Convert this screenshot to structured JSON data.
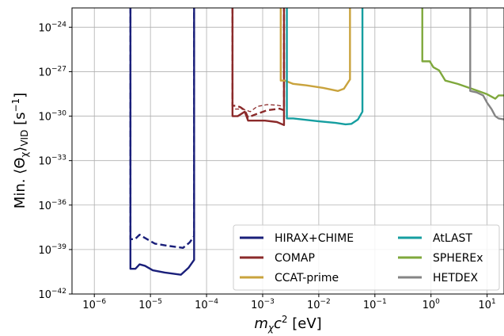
{
  "chart_data": {
    "type": "line",
    "title": "",
    "xlabel": "m_χ c² [eV]",
    "ylabel": "Min. ⟨Θ_χ⟩_VID [s⁻¹]",
    "xscale": "log",
    "yscale": "log",
    "xlim": [
      4e-07,
      20
    ],
    "ylim": [
      1e-42,
      2e-23
    ],
    "grid": true,
    "legend": {
      "placement": "lower-right",
      "columns": 2
    },
    "x_ticks": [
      {
        "value": 1e-06,
        "base": "10",
        "exp": "−6"
      },
      {
        "value": 1e-05,
        "base": "10",
        "exp": "−5"
      },
      {
        "value": 0.0001,
        "base": "10",
        "exp": "−4"
      },
      {
        "value": 0.001,
        "base": "10",
        "exp": "−3"
      },
      {
        "value": 0.01,
        "base": "10",
        "exp": "−2"
      },
      {
        "value": 0.1,
        "base": "10",
        "exp": "−1"
      },
      {
        "value": 1,
        "base": "10",
        "exp": "0"
      },
      {
        "value": 10,
        "base": "10",
        "exp": "1"
      }
    ],
    "y_ticks": [
      {
        "value": 1e-42,
        "base": "10",
        "exp": "−42"
      },
      {
        "value": 1e-39,
        "base": "10",
        "exp": "−39"
      },
      {
        "value": 1e-36,
        "base": "10",
        "exp": "−36"
      },
      {
        "value": 1e-33,
        "base": "10",
        "exp": "−33"
      },
      {
        "value": 1e-30,
        "base": "10",
        "exp": "−30"
      },
      {
        "value": 1e-27,
        "base": "10",
        "exp": "−27"
      },
      {
        "value": 1e-24,
        "base": "10",
        "exp": "−24"
      }
    ],
    "series": [
      {
        "name": "HIRAX+CHIME",
        "color": "#1a1f7a",
        "style": "solid",
        "x": [
          4.4e-06,
          4.4e-06,
          5.4e-06,
          6.4e-06,
          8e-06,
          1.1e-05,
          1.8e-05,
          3.5e-05,
          4.8e-05,
          6e-05,
          6e-05
        ],
        "y": [
          1e-22,
          5e-41,
          5e-41,
          1e-40,
          8e-41,
          4e-41,
          2.8e-41,
          2e-41,
          6e-41,
          2e-40,
          1e-22
        ]
      },
      {
        "name": "HIRAX+CHIME",
        "color": "#1a1f7a",
        "style": "dashed",
        "x": [
          4.4e-06,
          4.4e-06,
          5.3e-06,
          6.4e-06,
          8e-06,
          1.2e-05,
          2e-05,
          3.8e-05,
          5e-05,
          6e-05,
          6e-05
        ],
        "y": [
          1e-22,
          5e-39,
          5e-39,
          1e-38,
          6e-39,
          2.5e-39,
          1.8e-39,
          1.3e-39,
          3e-39,
          8e-39,
          1e-22
        ]
      },
      {
        "name": "COMAP",
        "color": "#8b2a2a",
        "style": "solid",
        "x": [
          0.00029,
          0.00029,
          0.00036,
          0.00048,
          0.00055,
          0.0007,
          0.0011,
          0.0018,
          0.0024,
          0.0024
        ],
        "y": [
          1e-22,
          1e-30,
          1e-30,
          2e-30,
          5e-31,
          5e-31,
          5e-31,
          4e-31,
          2.5e-31,
          1e-22
        ]
      },
      {
        "name": "COMAP",
        "color": "#8b2a2a",
        "style": "dashed",
        "x": [
          0.00029,
          0.00029,
          0.00034,
          0.0004,
          0.00048,
          0.00055,
          0.0007,
          0.0012,
          0.002,
          0.0024,
          0.0024
        ],
        "y": [
          1e-22,
          5e-30,
          5e-30,
          4e-30,
          2.5e-30,
          8e-31,
          1.2e-30,
          2.5e-30,
          3.2e-30,
          2.5e-30,
          1e-22
        ]
      },
      {
        "name": "COMAP",
        "color": "#8b2a2a",
        "style": "thin-dashed",
        "x": [
          0.00029,
          0.00029,
          0.00045,
          0.0006,
          0.0008,
          0.0012,
          0.0018,
          0.0024,
          0.0024
        ],
        "y": [
          1e-22,
          3e-30,
          3e-30,
          2e-30,
          4.5e-30,
          6e-30,
          5.5e-30,
          4.5e-30,
          1e-22
        ]
      },
      {
        "name": "CCAT-prime",
        "color": "#c9a33d",
        "style": "solid",
        "x": [
          0.0021,
          0.0021,
          0.0025,
          0.0035,
          0.006,
          0.012,
          0.022,
          0.028,
          0.036,
          0.036
        ],
        "y": [
          1e-22,
          2.5e-28,
          2.5e-28,
          1.5e-28,
          1.2e-28,
          8e-29,
          5e-29,
          7e-29,
          3e-28,
          1e-22
        ]
      },
      {
        "name": "AtLAST",
        "color": "#159ea0",
        "style": "solid",
        "x": [
          0.0027,
          0.0027,
          0.0035,
          0.005,
          0.01,
          0.02,
          0.03,
          0.038,
          0.05,
          0.06,
          0.06
        ],
        "y": [
          1e-22,
          7e-31,
          7e-31,
          6e-31,
          4.5e-31,
          3.5e-31,
          2.8e-31,
          3e-31,
          6e-31,
          2e-30,
          1e-22
        ]
      },
      {
        "name": "SPHEREx",
        "color": "#7fa83c",
        "style": "solid",
        "x": [
          0.7,
          0.7,
          0.95,
          1.1,
          1.4,
          1.8,
          3,
          6,
          10,
          14,
          16,
          18,
          20
        ],
        "y": [
          1e-22,
          5e-27,
          5e-27,
          2e-27,
          1.2e-27,
          2.5e-28,
          1.5e-28,
          6e-29,
          3e-29,
          1.5e-29,
          2.5e-29,
          2.5e-29,
          2.5e-29
        ]
      },
      {
        "name": "HETDEX",
        "color": "#858585",
        "style": "solid",
        "x": [
          5,
          5,
          6.5,
          8.5,
          10,
          12,
          14,
          16,
          20
        ],
        "y": [
          1e-22,
          5e-29,
          4e-29,
          2.5e-29,
          8e-30,
          3e-30,
          1e-30,
          7e-31,
          6e-31
        ]
      }
    ],
    "legend_entries": [
      {
        "label": "HIRAX+CHIME",
        "color": "#1a1f7a"
      },
      {
        "label": "COMAP",
        "color": "#8b2a2a"
      },
      {
        "label": "CCAT-prime",
        "color": "#c9a33d"
      },
      {
        "label": "AtLAST",
        "color": "#159ea0"
      },
      {
        "label": "SPHEREx",
        "color": "#7fa83c"
      },
      {
        "label": "HETDEX",
        "color": "#858585"
      }
    ]
  }
}
